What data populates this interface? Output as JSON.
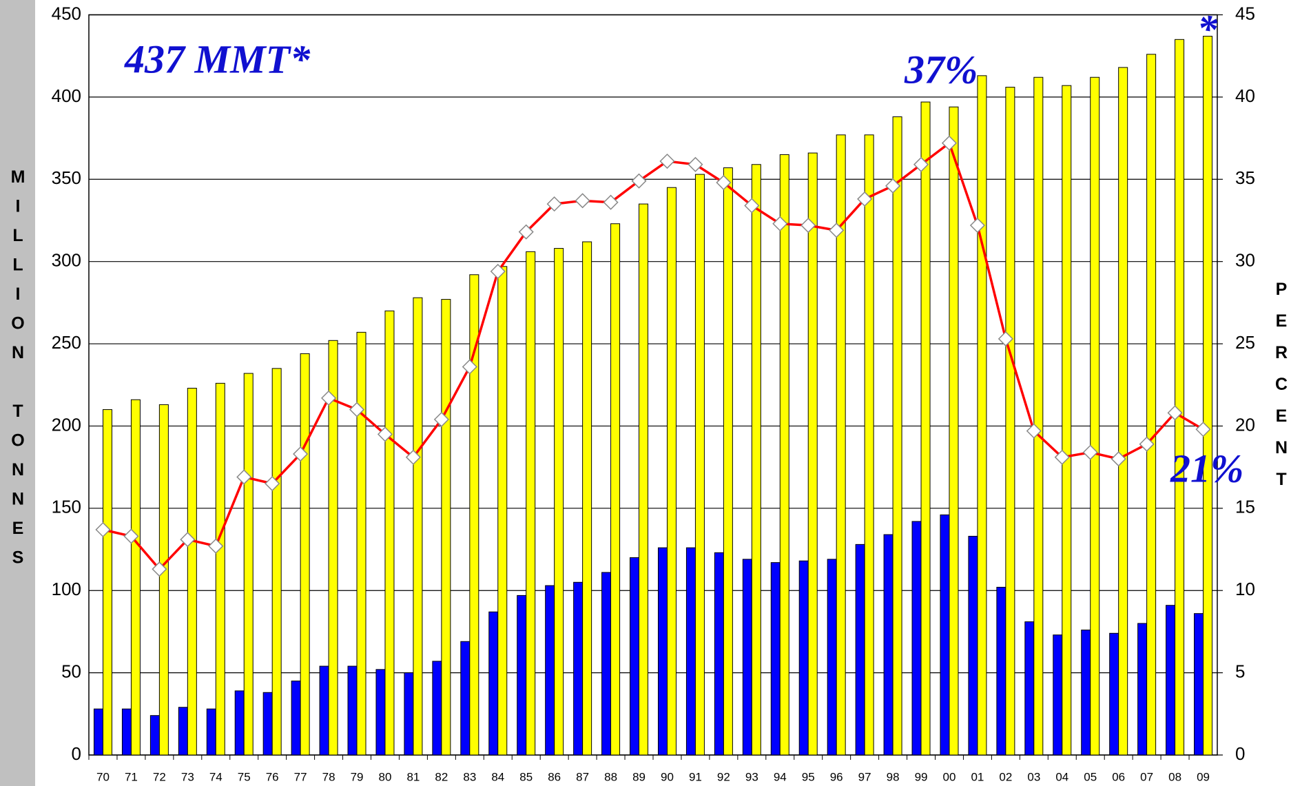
{
  "chart_data": {
    "type": "bar",
    "categories": [
      "70",
      "71",
      "72",
      "73",
      "74",
      "75",
      "76",
      "77",
      "78",
      "79",
      "80",
      "81",
      "82",
      "83",
      "84",
      "85",
      "86",
      "87",
      "88",
      "89",
      "90",
      "91",
      "92",
      "93",
      "94",
      "95",
      "96",
      "97",
      "98",
      "99",
      "00",
      "01",
      "02",
      "03",
      "04",
      "05",
      "06",
      "07",
      "08",
      "09"
    ],
    "series": [
      {
        "color": "#0000ff",
        "values": [
          28,
          28,
          24,
          29,
          28,
          39,
          38,
          45,
          54,
          54,
          52,
          50,
          57,
          69,
          87,
          97,
          103,
          105,
          111,
          120,
          126,
          126,
          123,
          119,
          117,
          118,
          119,
          128,
          134,
          142,
          146,
          133,
          102,
          81,
          73,
          76,
          74,
          80,
          91,
          86
        ]
      },
      {
        "color": "#ffff00",
        "values": [
          210,
          216,
          213,
          223,
          226,
          232,
          235,
          244,
          252,
          257,
          270,
          278,
          277,
          292,
          297,
          306,
          308,
          312,
          323,
          335,
          345,
          353,
          357,
          359,
          365,
          366,
          377,
          377,
          388,
          397,
          394,
          413,
          406,
          412,
          407,
          412,
          418,
          426,
          435,
          437
        ]
      },
      {
        "type": "line",
        "axis": "y2",
        "color": "#ff0000",
        "values": [
          13.7,
          13.3,
          11.3,
          13.1,
          12.7,
          16.9,
          16.5,
          18.3,
          21.7,
          21.0,
          19.5,
          18.1,
          20.4,
          23.6,
          29.4,
          31.8,
          33.5,
          33.7,
          33.6,
          34.9,
          36.1,
          35.9,
          34.8,
          33.4,
          32.3,
          32.2,
          31.9,
          33.8,
          34.6,
          35.9,
          37.2,
          32.2,
          25.3,
          19.7,
          18.1,
          18.4,
          18.0,
          18.9,
          20.8,
          19.8
        ]
      }
    ],
    "ylabel": "MILLION TONNES",
    "y2label": "PERCENT",
    "annotations": [
      "437 MMT*",
      "37%",
      "21%",
      "*"
    ],
    "ylim": [
      0,
      450
    ],
    "yticks": [
      0,
      50,
      100,
      150,
      200,
      250,
      300,
      350,
      400,
      450
    ],
    "y2lim": [
      0,
      45
    ],
    "y2ticks": [
      0,
      5,
      10,
      15,
      20,
      25,
      30,
      35,
      40,
      45
    ],
    "grid": true
  }
}
